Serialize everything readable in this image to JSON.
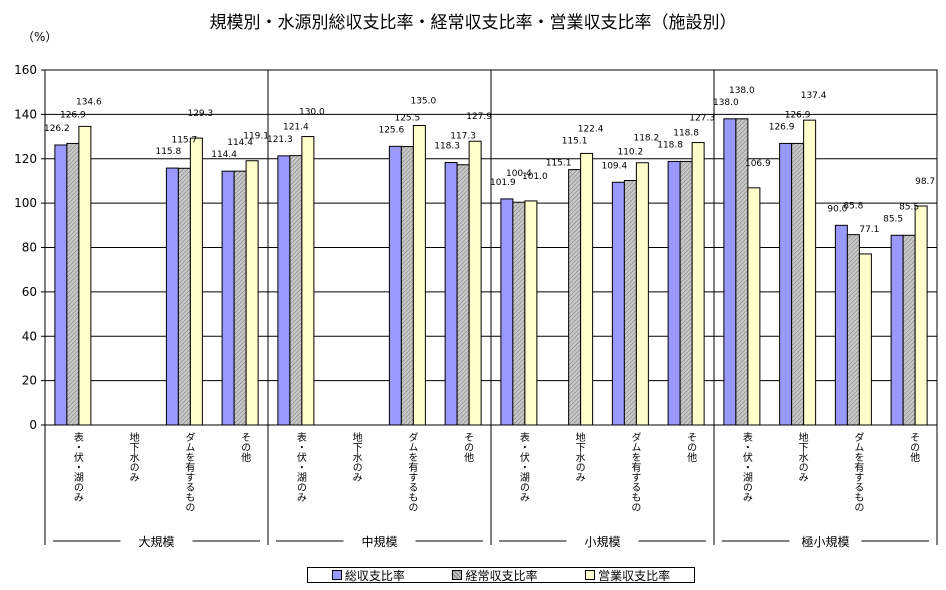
{
  "chart_data": {
    "type": "bar",
    "title": "規模別・水源別総収支比率・経常収支比率・営業収支比率（施設別）",
    "unit": "（%）",
    "ylim": [
      0,
      160
    ],
    "yticks": [
      "0",
      "20",
      "40",
      "60",
      "80",
      "100",
      "120",
      "140",
      "160"
    ],
    "grid": true,
    "legend_position": "bottom",
    "groups": [
      {
        "name": "大規模",
        "categories": [
          "表・伏・湖のみ",
          "地下水のみ",
          "ダムを有するもの",
          "その他"
        ]
      },
      {
        "name": "中規模",
        "categories": [
          "表・伏・湖のみ",
          "地下水のみ",
          "ダムを有するもの",
          "その他"
        ]
      },
      {
        "name": "小規模",
        "categories": [
          "表・伏・湖のみ",
          "地下水のみ",
          "ダムを有するもの",
          "その他"
        ]
      },
      {
        "name": "極小規模",
        "categories": [
          "表・伏・湖のみ",
          "地下水のみ",
          "ダムを有するもの",
          "その他"
        ]
      }
    ],
    "series": [
      {
        "name": "総収支比率",
        "color": "#9999ff",
        "values": [
          126.2,
          null,
          115.8,
          114.4,
          121.3,
          null,
          125.6,
          118.3,
          101.9,
          null,
          109.4,
          118.8,
          138.0,
          126.9,
          90.0,
          85.5
        ],
        "labels": [
          "126.2",
          "",
          "115.8",
          "114.4",
          "121.3",
          "",
          "125.6",
          "118.3",
          "101.9",
          "",
          "109.4",
          "118.8",
          "138.0",
          "126.9",
          "90.0",
          "85.5"
        ]
      },
      {
        "name": "経常収支比率",
        "color": "#c0c0c0",
        "values": [
          126.9,
          null,
          115.7,
          114.4,
          121.4,
          null,
          125.5,
          117.3,
          100.4,
          115.1,
          110.2,
          118.8,
          138.0,
          126.9,
          85.8,
          85.5
        ],
        "labels": [
          "126.9",
          "",
          "115.7",
          "114.4",
          "121.4",
          "",
          "125.5",
          "117.3",
          "100.4",
          "115.1",
          "110.2",
          "118.8",
          "138.0",
          "126.9",
          "85.8",
          "85.5"
        ]
      },
      {
        "name": "営業収支比率",
        "color": "#ffffcc",
        "values": [
          134.6,
          null,
          129.3,
          119.1,
          130.0,
          null,
          135.0,
          127.9,
          101.0,
          122.4,
          118.2,
          127.3,
          106.9,
          137.4,
          77.1,
          98.7
        ],
        "labels": [
          "134.6",
          "",
          "129.3",
          "119.1",
          "130.0",
          "",
          "135.0",
          "127.9",
          "101.0",
          "122.4",
          "118.2",
          "127.3",
          "106.9",
          "137.4",
          "77.1",
          "98.7"
        ]
      }
    ],
    "extra_labels": [
      "115.1"
    ]
  }
}
